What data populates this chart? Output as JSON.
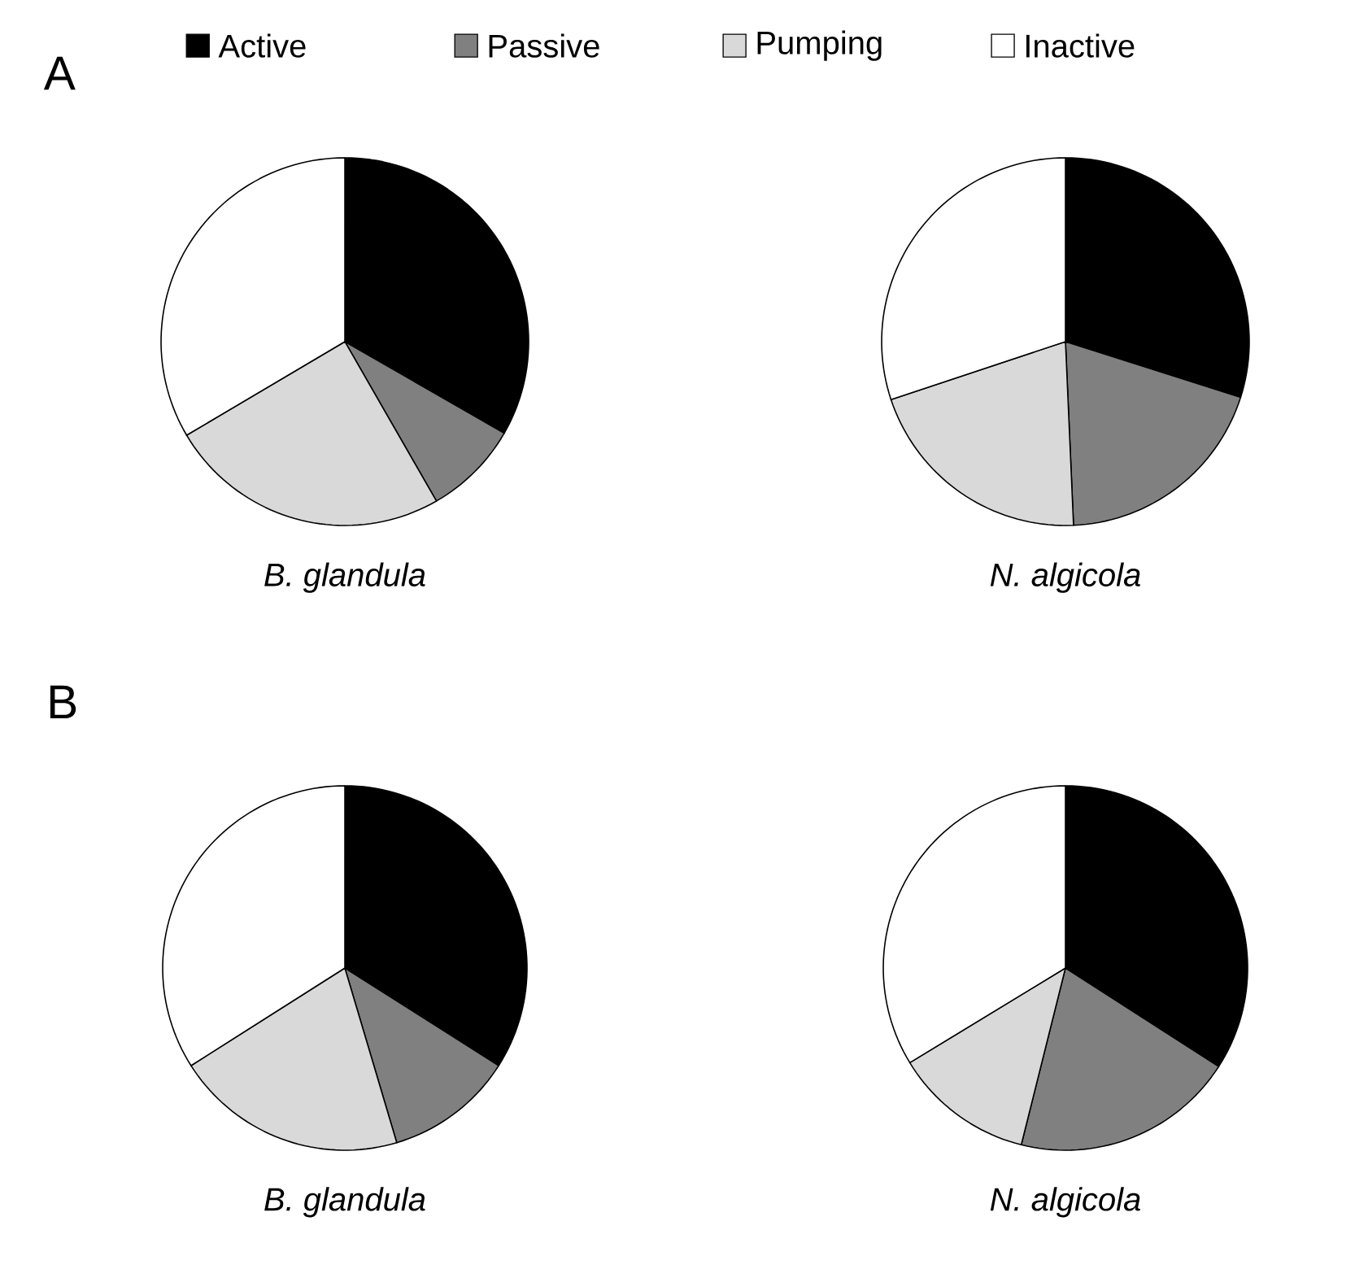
{
  "chart_data": [
    {
      "type": "pie",
      "title": "A",
      "xlabel": "B. glandula",
      "legend": "top",
      "categories": [
        "Active",
        "Passive",
        "Pumping",
        "Inactive"
      ],
      "values": [
        33.3,
        8.4,
        24.8,
        33.5
      ],
      "colors": [
        "#000000",
        "#808080",
        "#d9d9d9",
        "#ffffff"
      ]
    },
    {
      "type": "pie",
      "xlabel": "N. algicola",
      "categories": [
        null,
        null,
        null,
        null
      ],
      "values": [
        29.9,
        19.4,
        20.6,
        30.1
      ],
      "colors": [
        "#000000",
        "#808080",
        "#d9d9d9",
        "#ffffff"
      ]
    },
    {
      "type": "pie",
      "title": "B",
      "xlabel": "B. glandula",
      "categories": [
        null,
        null,
        null,
        null
      ],
      "values": [
        34.0,
        11.4,
        20.6,
        34.0
      ],
      "colors": [
        "#000000",
        "#808080",
        "#d9d9d9",
        "#ffffff"
      ]
    },
    {
      "type": "pie",
      "xlabel": "N. algicola",
      "categories": [
        null,
        null,
        null,
        null
      ],
      "values": [
        34.1,
        19.8,
        12.4,
        33.7
      ],
      "colors": [
        "#000000",
        "#808080",
        "#d9d9d9",
        "#ffffff"
      ]
    }
  ]
}
